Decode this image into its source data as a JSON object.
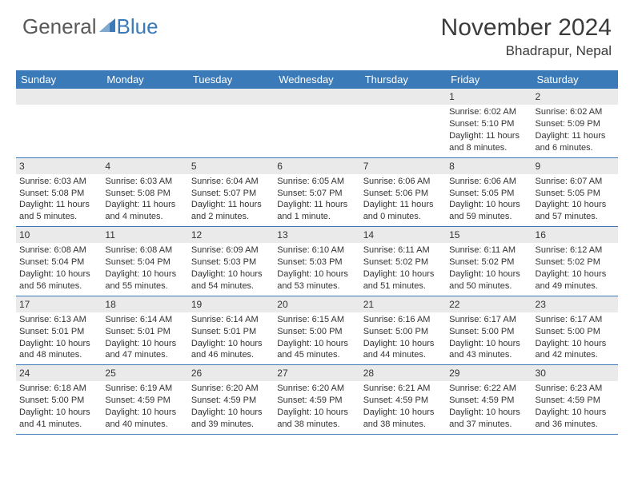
{
  "logo": {
    "text1": "General",
    "text2": "Blue",
    "text1_color": "#595959",
    "text2_color": "#3a7ab8"
  },
  "header": {
    "month": "November 2024",
    "location": "Bhadrapur, Nepal"
  },
  "theme": {
    "header_bg": "#3a7ab8",
    "daynum_bg": "#eaeaea",
    "rule_color": "#3a7ab8",
    "text_color": "#333333"
  },
  "weekdays": [
    "Sunday",
    "Monday",
    "Tuesday",
    "Wednesday",
    "Thursday",
    "Friday",
    "Saturday"
  ],
  "weeks": [
    [
      null,
      null,
      null,
      null,
      null,
      {
        "n": "1",
        "sr": "6:02 AM",
        "ss": "5:10 PM",
        "dl": "11 hours and 8 minutes."
      },
      {
        "n": "2",
        "sr": "6:02 AM",
        "ss": "5:09 PM",
        "dl": "11 hours and 6 minutes."
      }
    ],
    [
      {
        "n": "3",
        "sr": "6:03 AM",
        "ss": "5:08 PM",
        "dl": "11 hours and 5 minutes."
      },
      {
        "n": "4",
        "sr": "6:03 AM",
        "ss": "5:08 PM",
        "dl": "11 hours and 4 minutes."
      },
      {
        "n": "5",
        "sr": "6:04 AM",
        "ss": "5:07 PM",
        "dl": "11 hours and 2 minutes."
      },
      {
        "n": "6",
        "sr": "6:05 AM",
        "ss": "5:07 PM",
        "dl": "11 hours and 1 minute."
      },
      {
        "n": "7",
        "sr": "6:06 AM",
        "ss": "5:06 PM",
        "dl": "11 hours and 0 minutes."
      },
      {
        "n": "8",
        "sr": "6:06 AM",
        "ss": "5:05 PM",
        "dl": "10 hours and 59 minutes."
      },
      {
        "n": "9",
        "sr": "6:07 AM",
        "ss": "5:05 PM",
        "dl": "10 hours and 57 minutes."
      }
    ],
    [
      {
        "n": "10",
        "sr": "6:08 AM",
        "ss": "5:04 PM",
        "dl": "10 hours and 56 minutes."
      },
      {
        "n": "11",
        "sr": "6:08 AM",
        "ss": "5:04 PM",
        "dl": "10 hours and 55 minutes."
      },
      {
        "n": "12",
        "sr": "6:09 AM",
        "ss": "5:03 PM",
        "dl": "10 hours and 54 minutes."
      },
      {
        "n": "13",
        "sr": "6:10 AM",
        "ss": "5:03 PM",
        "dl": "10 hours and 53 minutes."
      },
      {
        "n": "14",
        "sr": "6:11 AM",
        "ss": "5:02 PM",
        "dl": "10 hours and 51 minutes."
      },
      {
        "n": "15",
        "sr": "6:11 AM",
        "ss": "5:02 PM",
        "dl": "10 hours and 50 minutes."
      },
      {
        "n": "16",
        "sr": "6:12 AM",
        "ss": "5:02 PM",
        "dl": "10 hours and 49 minutes."
      }
    ],
    [
      {
        "n": "17",
        "sr": "6:13 AM",
        "ss": "5:01 PM",
        "dl": "10 hours and 48 minutes."
      },
      {
        "n": "18",
        "sr": "6:14 AM",
        "ss": "5:01 PM",
        "dl": "10 hours and 47 minutes."
      },
      {
        "n": "19",
        "sr": "6:14 AM",
        "ss": "5:01 PM",
        "dl": "10 hours and 46 minutes."
      },
      {
        "n": "20",
        "sr": "6:15 AM",
        "ss": "5:00 PM",
        "dl": "10 hours and 45 minutes."
      },
      {
        "n": "21",
        "sr": "6:16 AM",
        "ss": "5:00 PM",
        "dl": "10 hours and 44 minutes."
      },
      {
        "n": "22",
        "sr": "6:17 AM",
        "ss": "5:00 PM",
        "dl": "10 hours and 43 minutes."
      },
      {
        "n": "23",
        "sr": "6:17 AM",
        "ss": "5:00 PM",
        "dl": "10 hours and 42 minutes."
      }
    ],
    [
      {
        "n": "24",
        "sr": "6:18 AM",
        "ss": "5:00 PM",
        "dl": "10 hours and 41 minutes."
      },
      {
        "n": "25",
        "sr": "6:19 AM",
        "ss": "4:59 PM",
        "dl": "10 hours and 40 minutes."
      },
      {
        "n": "26",
        "sr": "6:20 AM",
        "ss": "4:59 PM",
        "dl": "10 hours and 39 minutes."
      },
      {
        "n": "27",
        "sr": "6:20 AM",
        "ss": "4:59 PM",
        "dl": "10 hours and 38 minutes."
      },
      {
        "n": "28",
        "sr": "6:21 AM",
        "ss": "4:59 PM",
        "dl": "10 hours and 38 minutes."
      },
      {
        "n": "29",
        "sr": "6:22 AM",
        "ss": "4:59 PM",
        "dl": "10 hours and 37 minutes."
      },
      {
        "n": "30",
        "sr": "6:23 AM",
        "ss": "4:59 PM",
        "dl": "10 hours and 36 minutes."
      }
    ]
  ],
  "labels": {
    "sunrise": "Sunrise:",
    "sunset": "Sunset:",
    "daylight": "Daylight:"
  }
}
